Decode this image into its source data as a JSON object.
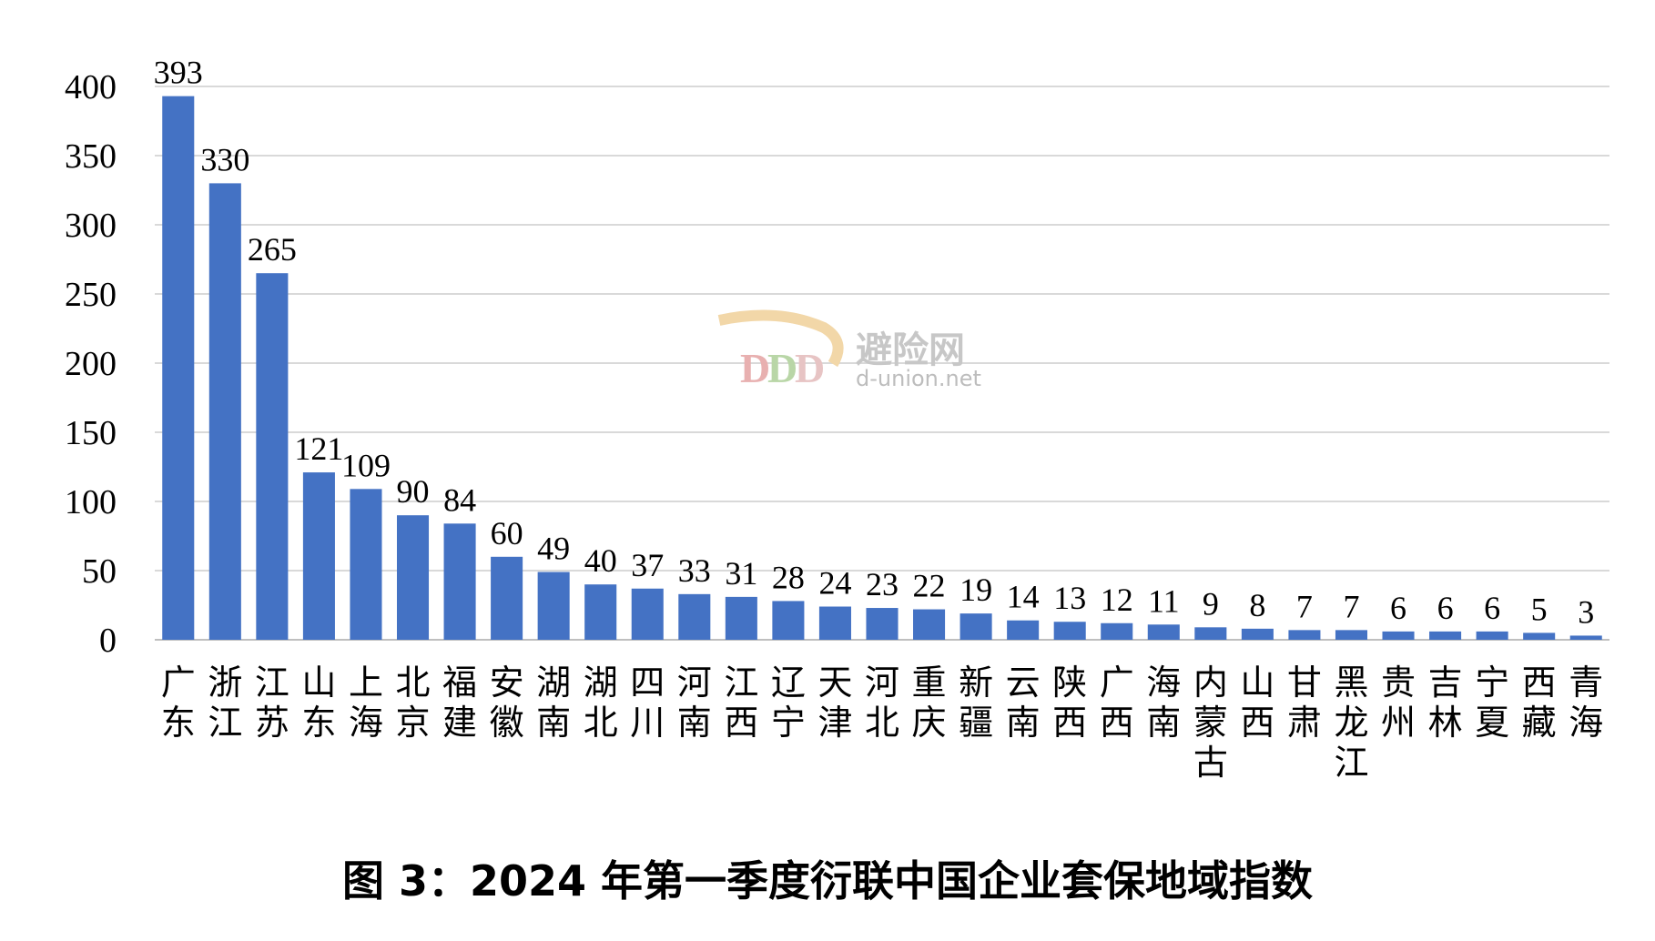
{
  "caption": "图 3：2024 年第一季度衍联中国企业套保地域指数",
  "watermark": {
    "cn": "避险网",
    "en": "d-union.net"
  },
  "colors": {
    "bar": "#4472C4",
    "grid": "#d9d9d9",
    "axis": "#bfbfbf",
    "text": "#000000"
  },
  "chart_data": {
    "type": "bar",
    "title": "",
    "xlabel": "",
    "ylabel": "",
    "ylim": [
      0,
      400
    ],
    "yticks": [
      0,
      50,
      100,
      150,
      200,
      250,
      300,
      350,
      400
    ],
    "grid": true,
    "data_labels": true,
    "categories": [
      "广东",
      "浙江",
      "江苏",
      "山东",
      "上海",
      "北京",
      "福建",
      "安徽",
      "湖南",
      "湖北",
      "四川",
      "河南",
      "江西",
      "辽宁",
      "天津",
      "河北",
      "重庆",
      "新疆",
      "云南",
      "陕西",
      "广西",
      "海南",
      "内蒙古",
      "山西",
      "甘肃",
      "黑龙江",
      "贵州",
      "吉林",
      "宁夏",
      "西藏",
      "青海"
    ],
    "values": [
      393,
      330,
      265,
      121,
      109,
      90,
      84,
      60,
      49,
      40,
      37,
      33,
      31,
      28,
      24,
      23,
      22,
      19,
      14,
      13,
      12,
      11,
      9,
      8,
      7,
      7,
      6,
      6,
      6,
      5,
      3
    ]
  }
}
